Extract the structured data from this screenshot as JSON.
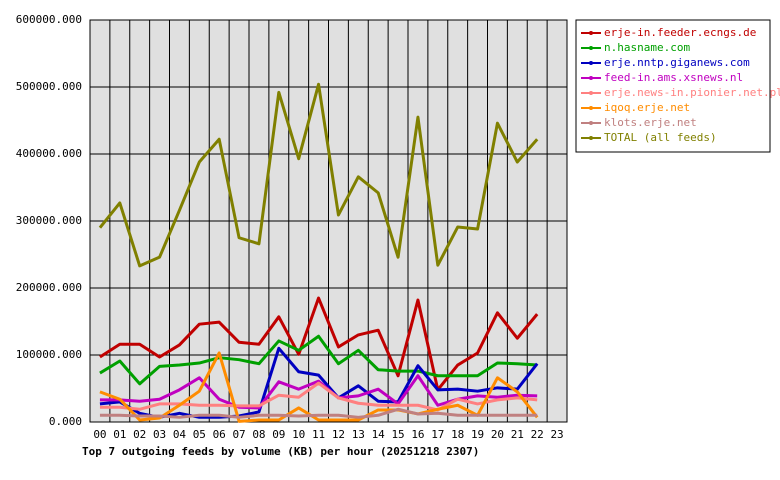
{
  "chart_data": {
    "type": "line",
    "title": "Top 7 outgoing feeds by volume (KB) per hour (20251218 2307)",
    "categories": [
      "00",
      "01",
      "02",
      "03",
      "04",
      "05",
      "06",
      "07",
      "08",
      "09",
      "10",
      "11",
      "12",
      "13",
      "14",
      "15",
      "16",
      "17",
      "18",
      "19",
      "20",
      "21",
      "22",
      "23"
    ],
    "ylim": [
      0,
      600000
    ],
    "yticks": [
      {
        "value": 0,
        "label": "0.000"
      },
      {
        "value": 100000,
        "label": "100000.000"
      },
      {
        "value": 200000,
        "label": "200000.000"
      },
      {
        "value": 300000,
        "label": "300000.000"
      },
      {
        "value": 400000,
        "label": "400000.000"
      },
      {
        "value": 500000,
        "label": "500000.000"
      },
      {
        "value": 600000,
        "label": "600000.000"
      }
    ],
    "grid": true,
    "series": [
      {
        "name": "erje-in.feeder.ecngs.de",
        "color": "#c00000",
        "values": [
          97000,
          116000,
          116000,
          97000,
          115000,
          146000,
          149000,
          119000,
          116000,
          157000,
          101000,
          185000,
          112000,
          130000,
          137000,
          69000,
          182000,
          48000,
          85000,
          103000,
          163000,
          125000,
          161000,
          null
        ]
      },
      {
        "name": "n.hasname.com",
        "color": "#00a000",
        "values": [
          73000,
          91000,
          57000,
          83000,
          85000,
          88000,
          96000,
          93000,
          87000,
          121000,
          107000,
          128000,
          87000,
          107000,
          78000,
          76000,
          76000,
          69000,
          69000,
          69000,
          88000,
          87000,
          85000,
          null
        ]
      },
      {
        "name": "erje.nntp.giganews.com",
        "color": "#0000c0",
        "values": [
          27000,
          30000,
          13000,
          7000,
          13000,
          7000,
          7000,
          9000,
          15000,
          110000,
          75000,
          70000,
          36000,
          54000,
          31000,
          30000,
          84000,
          48000,
          49000,
          46000,
          51000,
          49000,
          87000,
          null
        ]
      },
      {
        "name": "feed-in.ams.xsnews.nl",
        "color": "#c000c0",
        "values": [
          33000,
          33000,
          31000,
          34000,
          48000,
          66000,
          34000,
          22000,
          21000,
          60000,
          49000,
          61000,
          36000,
          39000,
          49000,
          27000,
          69000,
          25000,
          34000,
          39000,
          37000,
          40000,
          39000,
          null
        ]
      },
      {
        "name": "erje.news-in.pionier.net.pl",
        "color": "#ff8080",
        "values": [
          22000,
          22000,
          19000,
          27000,
          27000,
          25000,
          25000,
          24000,
          24000,
          40000,
          37000,
          58000,
          36000,
          28000,
          25000,
          25000,
          25000,
          18000,
          34000,
          27000,
          33000,
          36000,
          33000,
          null
        ]
      },
      {
        "name": "iqoq.erje.net",
        "color": "#ff8c00",
        "values": [
          45000,
          34000,
          3000,
          6000,
          25000,
          46000,
          103000,
          1000,
          3000,
          3000,
          21000,
          3000,
          3000,
          3000,
          18000,
          18000,
          12000,
          19000,
          25000,
          10000,
          66000,
          45000,
          7000,
          null
        ]
      },
      {
        "name": "klots.erje.net",
        "color": "#c08080",
        "values": [
          10000,
          10000,
          9000,
          9000,
          7000,
          10000,
          10000,
          7000,
          10000,
          10000,
          9000,
          10000,
          10000,
          7000,
          10000,
          19000,
          12000,
          13000,
          10000,
          10000,
          10000,
          10000,
          10000,
          null
        ]
      },
      {
        "name": "TOTAL (all feeds)",
        "color": "#808000",
        "values": [
          290000,
          327000,
          233000,
          246000,
          316000,
          388000,
          422000,
          275000,
          266000,
          492000,
          393000,
          504000,
          309000,
          366000,
          342000,
          246000,
          455000,
          234000,
          291000,
          288000,
          446000,
          388000,
          422000,
          null
        ]
      }
    ]
  }
}
